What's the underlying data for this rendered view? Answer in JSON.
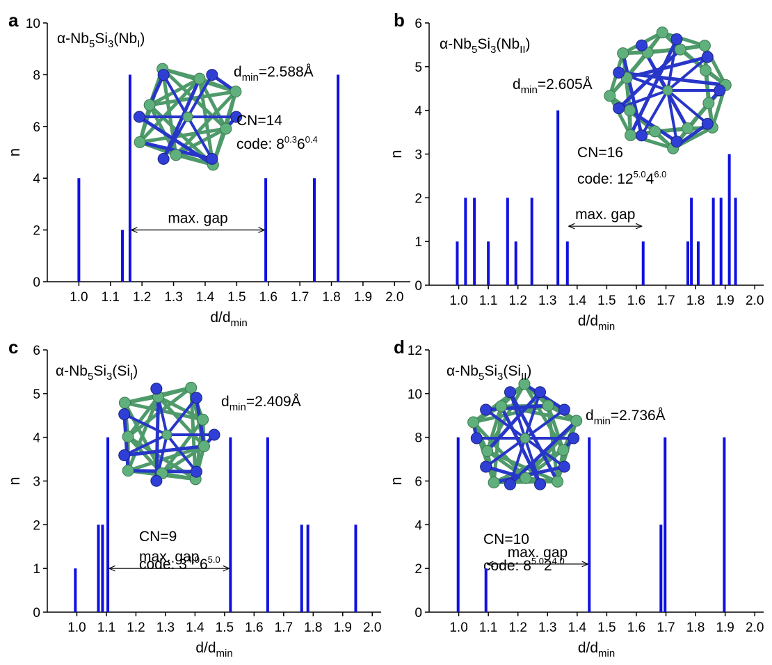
{
  "chart_data": [
    {
      "type": "bar",
      "panel": "a",
      "title": [
        "α-Nb",
        "5",
        "Si",
        "3",
        "(Nb",
        "I",
        ")"
      ],
      "x_label": [
        "d/d",
        "min"
      ],
      "y_label": "n",
      "dmin": [
        "d",
        "min",
        "=2.588Å"
      ],
      "cn": "CN=14",
      "code": [
        "code: ",
        "8",
        "0.3",
        "6",
        "0.4"
      ],
      "x": [
        1.0,
        1.138,
        1.162,
        1.592,
        1.746,
        1.821
      ],
      "values": [
        4,
        2,
        8,
        4,
        4,
        8
      ],
      "color": "#1010e0",
      "gap": {
        "label": "max. gap",
        "x": [
          1.162,
          1.592
        ],
        "y": 2
      },
      "xlim": [
        0.9,
        2.05
      ],
      "ylim": [
        0,
        10
      ],
      "xticks": [
        {
          "value": 1.0,
          "label": "1.0"
        },
        {
          "value": 1.1,
          "label": "1.1"
        },
        {
          "value": 1.2,
          "label": "1.2"
        },
        {
          "value": 1.3,
          "label": "1.3"
        },
        {
          "value": 1.4,
          "label": "1.4"
        },
        {
          "value": 1.5,
          "label": "1.5"
        },
        {
          "value": 1.6,
          "label": "1.6"
        },
        {
          "value": 1.7,
          "label": "1.7"
        },
        {
          "value": 1.8,
          "label": "1.8"
        },
        {
          "value": 1.9,
          "label": "1.9"
        },
        {
          "value": 2.0,
          "label": "2.0"
        }
      ],
      "yticks": [
        0,
        2,
        4,
        6,
        8,
        10
      ]
    },
    {
      "type": "bar",
      "panel": "b",
      "title": [
        "α-Nb",
        "5",
        "Si",
        "3",
        "(Nb",
        "II",
        ")"
      ],
      "x_label": [
        "d/d",
        "min"
      ],
      "y_label": "n",
      "dmin": [
        "d",
        "min",
        "=2.605Å"
      ],
      "cn": "CN=16",
      "code": [
        "code: ",
        "12",
        "5.0",
        "4",
        "6.0"
      ],
      "x": [
        0.995,
        1.023,
        1.053,
        1.1,
        1.165,
        1.193,
        1.247,
        1.335,
        1.367,
        1.623,
        1.774,
        1.786,
        1.809,
        1.86,
        1.886,
        1.914,
        1.935
      ],
      "values": [
        1,
        2,
        2,
        1,
        2,
        1,
        2,
        4,
        1,
        1,
        1,
        2,
        1,
        2,
        2,
        3,
        2
      ],
      "color": "#1010e0",
      "gap": {
        "label": "max. gap",
        "x": [
          1.367,
          1.623
        ],
        "y": 1.35
      },
      "xlim": [
        0.9,
        2.03
      ],
      "ylim": [
        0,
        6
      ],
      "xticks": [
        {
          "value": 1.0,
          "label": "1.0"
        },
        {
          "value": 1.1,
          "label": "1.1"
        },
        {
          "value": 1.2,
          "label": "1.2"
        },
        {
          "value": 1.3,
          "label": "1.3"
        },
        {
          "value": 1.4,
          "label": "1.4"
        },
        {
          "value": 1.5,
          "label": "1.5"
        },
        {
          "value": 1.6,
          "label": "1.6"
        },
        {
          "value": 1.7,
          "label": "1.7"
        },
        {
          "value": 1.8,
          "label": "1.8"
        },
        {
          "value": 1.9,
          "label": "1.9"
        },
        {
          "value": 2.0,
          "label": "2.0"
        }
      ],
      "yticks": [
        0,
        1,
        2,
        3,
        4,
        5,
        6
      ]
    },
    {
      "type": "bar",
      "panel": "c",
      "title": [
        "α-Nb",
        "5",
        "Si",
        "3",
        "(Si",
        "I",
        ")"
      ],
      "x_label": [
        "d/d",
        "min"
      ],
      "y_label": "n",
      "dmin": [
        "d",
        "min",
        "=2.409Å"
      ],
      "cn": "CN=9",
      "code": [
        "code: ",
        "3",
        "4.0",
        "6",
        "5.0"
      ],
      "x": [
        0.995,
        1.073,
        1.087,
        1.105,
        1.52,
        1.646,
        1.761,
        1.782,
        1.944
      ],
      "values": [
        1,
        2,
        2,
        4,
        4,
        4,
        2,
        2,
        2
      ],
      "color": "#1010e0",
      "gap": {
        "label": "max. gap",
        "x": [
          1.105,
          1.52
        ],
        "y": 1
      },
      "xlim": [
        0.9,
        2.03
      ],
      "ylim": [
        0,
        6
      ],
      "xticks": [
        {
          "value": 1.0,
          "label": "1.0"
        },
        {
          "value": 1.1,
          "label": "1.1"
        },
        {
          "value": 1.2,
          "label": "1.2"
        },
        {
          "value": 1.3,
          "label": "1.3"
        },
        {
          "value": 1.4,
          "label": "1.4"
        },
        {
          "value": 1.5,
          "label": "1.5"
        },
        {
          "value": 1.6,
          "label": "1.6"
        },
        {
          "value": 1.7,
          "label": "1.7"
        },
        {
          "value": 1.8,
          "label": "1.8"
        },
        {
          "value": 1.9,
          "label": "1.9"
        },
        {
          "value": 2.0,
          "label": "2.0"
        }
      ],
      "yticks": [
        0,
        1,
        2,
        3,
        4,
        5,
        6
      ]
    },
    {
      "type": "bar",
      "panel": "d",
      "title": [
        "α-Nb",
        "5",
        "Si",
        "3",
        "(Si",
        "II",
        ")"
      ],
      "x_label": [
        "d/d",
        "min"
      ],
      "y_label": "n",
      "dmin": [
        "d",
        "min",
        "=2.736Å"
      ],
      "cn": "CN=10",
      "code": [
        "code: ",
        "8",
        "5.0",
        "2",
        "4.0"
      ],
      "x": [
        0.998,
        1.092,
        1.441,
        1.683,
        1.697,
        1.897
      ],
      "values": [
        8,
        2,
        8,
        4,
        8,
        8
      ],
      "color": "#1010e0",
      "gap": {
        "label": "max. gap",
        "x": [
          1.092,
          1.441
        ],
        "y": 2.2
      },
      "xlim": [
        0.9,
        2.03
      ],
      "ylim": [
        0,
        12
      ],
      "xticks": [
        {
          "value": 1.0,
          "label": "1.0"
        },
        {
          "value": 1.1,
          "label": "1.1"
        },
        {
          "value": 1.2,
          "label": "1.2"
        },
        {
          "value": 1.3,
          "label": "1.3"
        },
        {
          "value": 1.4,
          "label": "1.4"
        },
        {
          "value": 1.5,
          "label": "1.5"
        },
        {
          "value": 1.6,
          "label": "1.6"
        },
        {
          "value": 1.7,
          "label": "1.7"
        },
        {
          "value": 1.8,
          "label": "1.8"
        },
        {
          "value": 1.9,
          "label": "1.9"
        },
        {
          "value": 2.0,
          "label": "2.0"
        }
      ],
      "yticks": [
        0,
        2,
        4,
        6,
        8,
        10,
        12
      ]
    }
  ]
}
